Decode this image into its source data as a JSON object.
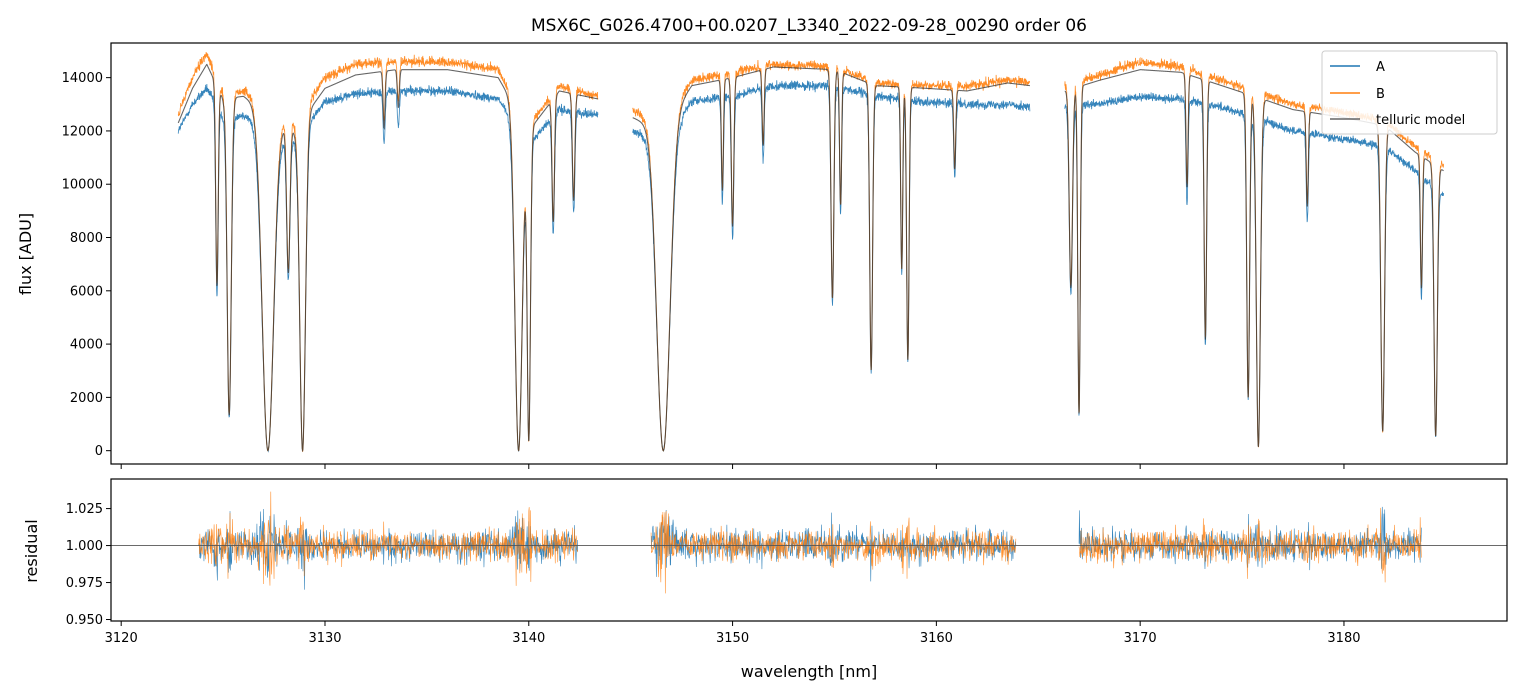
{
  "chart_data": {
    "type": "line",
    "title": "MSX6C_G026.4700+00.0207_L3340_2022-09-28_00290  order 06",
    "xlabel": "wavelength [nm]",
    "xlim": [
      3119.5,
      3188.0
    ],
    "x_ticks": [
      3120,
      3130,
      3140,
      3150,
      3160,
      3170,
      3180
    ],
    "colors": {
      "A": "#1f77b4",
      "B": "#ff7f0e",
      "model": "#333333",
      "unity": "#555555"
    },
    "top_panel": {
      "ylabel": "flux [ADU]",
      "ylim": [
        -500,
        15300
      ],
      "y_ticks": [
        0,
        2000,
        4000,
        6000,
        8000,
        10000,
        12000,
        14000
      ],
      "legend": {
        "position": "top-right",
        "entries": [
          "A",
          "B",
          "telluric model"
        ]
      },
      "segments": [
        [
          3122.8,
          3143.4
        ],
        [
          3145.1,
          3164.6
        ],
        [
          3166.3,
          3184.9
        ]
      ],
      "continuum": {
        "model": [
          [
            3122.8,
            12300
          ],
          [
            3123.5,
            13600
          ],
          [
            3124.2,
            14500
          ],
          [
            3125.0,
            13200
          ],
          [
            3126.0,
            13300
          ],
          [
            3127.5,
            12500
          ],
          [
            3128.5,
            12000
          ],
          [
            3130.0,
            13600
          ],
          [
            3131.5,
            14100
          ],
          [
            3133.5,
            14300
          ],
          [
            3136.0,
            14300
          ],
          [
            3138.5,
            14000
          ],
          [
            3140.0,
            12000
          ],
          [
            3141.5,
            13500
          ],
          [
            3143.4,
            13200
          ],
          [
            3145.1,
            12500
          ],
          [
            3146.5,
            12000
          ],
          [
            3148.0,
            13700
          ],
          [
            3150.0,
            14000
          ],
          [
            3152.0,
            14400
          ],
          [
            3155.0,
            14300
          ],
          [
            3157.0,
            13700
          ],
          [
            3159.5,
            13600
          ],
          [
            3161.5,
            13500
          ],
          [
            3163.5,
            13800
          ],
          [
            3164.6,
            13700
          ],
          [
            3166.3,
            13500
          ],
          [
            3168.0,
            13900
          ],
          [
            3170.0,
            14300
          ],
          [
            3172.0,
            14200
          ],
          [
            3174.0,
            13700
          ],
          [
            3176.0,
            13200
          ],
          [
            3177.5,
            12800
          ],
          [
            3180.0,
            12500
          ],
          [
            3182.0,
            12200
          ],
          [
            3183.5,
            11200
          ],
          [
            3184.9,
            10500
          ]
        ],
        "A": [
          [
            3122.8,
            12000
          ],
          [
            3123.5,
            13000
          ],
          [
            3124.2,
            13600
          ],
          [
            3125.0,
            12500
          ],
          [
            3126.0,
            12600
          ],
          [
            3127.5,
            12000
          ],
          [
            3128.5,
            11600
          ],
          [
            3130.0,
            13100
          ],
          [
            3131.5,
            13400
          ],
          [
            3133.5,
            13500
          ],
          [
            3136.0,
            13500
          ],
          [
            3138.5,
            13200
          ],
          [
            3140.0,
            11500
          ],
          [
            3141.5,
            12800
          ],
          [
            3143.4,
            12600
          ],
          [
            3145.1,
            12000
          ],
          [
            3146.5,
            11600
          ],
          [
            3148.0,
            13100
          ],
          [
            3150.0,
            13300
          ],
          [
            3152.0,
            13700
          ],
          [
            3155.0,
            13700
          ],
          [
            3157.0,
            13300
          ],
          [
            3159.5,
            13100
          ],
          [
            3161.5,
            13000
          ],
          [
            3163.5,
            13000
          ],
          [
            3164.6,
            12900
          ],
          [
            3166.3,
            12900
          ],
          [
            3168.0,
            13000
          ],
          [
            3170.0,
            13300
          ],
          [
            3172.0,
            13200
          ],
          [
            3174.0,
            12900
          ],
          [
            3176.0,
            12400
          ],
          [
            3177.5,
            12000
          ],
          [
            3180.0,
            11700
          ],
          [
            3182.0,
            11400
          ],
          [
            3183.5,
            10500
          ],
          [
            3184.9,
            9600
          ]
        ],
        "B": [
          [
            3122.8,
            12600
          ],
          [
            3123.5,
            14000
          ],
          [
            3124.2,
            14900
          ],
          [
            3125.0,
            13400
          ],
          [
            3126.0,
            13500
          ],
          [
            3127.5,
            12800
          ],
          [
            3128.5,
            12300
          ],
          [
            3130.0,
            14000
          ],
          [
            3131.5,
            14500
          ],
          [
            3133.5,
            14600
          ],
          [
            3136.0,
            14600
          ],
          [
            3138.5,
            14300
          ],
          [
            3140.0,
            12200
          ],
          [
            3141.5,
            13700
          ],
          [
            3143.4,
            13300
          ],
          [
            3145.1,
            12800
          ],
          [
            3146.5,
            12200
          ],
          [
            3148.0,
            13900
          ],
          [
            3150.0,
            14200
          ],
          [
            3152.0,
            14500
          ],
          [
            3155.0,
            14400
          ],
          [
            3157.0,
            13800
          ],
          [
            3159.5,
            13700
          ],
          [
            3161.5,
            13700
          ],
          [
            3163.5,
            13900
          ],
          [
            3164.6,
            13800
          ],
          [
            3166.3,
            13700
          ],
          [
            3168.0,
            14100
          ],
          [
            3170.0,
            14600
          ],
          [
            3172.0,
            14400
          ],
          [
            3174.0,
            13900
          ],
          [
            3176.0,
            13400
          ],
          [
            3177.5,
            13000
          ],
          [
            3180.0,
            12700
          ],
          [
            3182.0,
            12400
          ],
          [
            3183.5,
            11400
          ],
          [
            3184.9,
            10700
          ]
        ]
      },
      "absorption_lines": [
        {
          "center": 3124.7,
          "depth": 0.55,
          "width": 0.06
        },
        {
          "center": 3125.3,
          "depth": 0.9,
          "width": 0.1
        },
        {
          "center": 3127.2,
          "depth": 1.0,
          "width": 0.28
        },
        {
          "center": 3128.2,
          "depth": 0.45,
          "width": 0.08
        },
        {
          "center": 3128.9,
          "depth": 1.0,
          "width": 0.14
        },
        {
          "center": 3132.9,
          "depth": 0.15,
          "width": 0.05
        },
        {
          "center": 3133.6,
          "depth": 0.1,
          "width": 0.05
        },
        {
          "center": 3139.5,
          "depth": 1.0,
          "width": 0.18
        },
        {
          "center": 3140.0,
          "depth": 0.97,
          "width": 0.08
        },
        {
          "center": 3141.2,
          "depth": 0.35,
          "width": 0.06
        },
        {
          "center": 3142.2,
          "depth": 0.3,
          "width": 0.06
        },
        {
          "center": 3146.6,
          "depth": 1.0,
          "width": 0.32
        },
        {
          "center": 3149.5,
          "depth": 0.3,
          "width": 0.05
        },
        {
          "center": 3150.0,
          "depth": 0.4,
          "width": 0.06
        },
        {
          "center": 3151.5,
          "depth": 0.2,
          "width": 0.05
        },
        {
          "center": 3154.9,
          "depth": 0.6,
          "width": 0.07
        },
        {
          "center": 3155.3,
          "depth": 0.35,
          "width": 0.05
        },
        {
          "center": 3156.8,
          "depth": 0.78,
          "width": 0.07
        },
        {
          "center": 3158.3,
          "depth": 0.5,
          "width": 0.05
        },
        {
          "center": 3158.6,
          "depth": 0.75,
          "width": 0.06
        },
        {
          "center": 3160.9,
          "depth": 0.22,
          "width": 0.05
        },
        {
          "center": 3166.6,
          "depth": 0.55,
          "width": 0.08
        },
        {
          "center": 3167.0,
          "depth": 0.9,
          "width": 0.06
        },
        {
          "center": 3172.3,
          "depth": 0.3,
          "width": 0.05
        },
        {
          "center": 3173.2,
          "depth": 0.7,
          "width": 0.06
        },
        {
          "center": 3175.3,
          "depth": 0.85,
          "width": 0.07
        },
        {
          "center": 3175.8,
          "depth": 0.99,
          "width": 0.1
        },
        {
          "center": 3178.2,
          "depth": 0.28,
          "width": 0.05
        },
        {
          "center": 3181.9,
          "depth": 0.94,
          "width": 0.09
        },
        {
          "center": 3183.8,
          "depth": 0.45,
          "width": 0.05
        },
        {
          "center": 3184.5,
          "depth": 0.95,
          "width": 0.08
        }
      ]
    },
    "bottom_panel": {
      "ylabel": "residual",
      "ylim": [
        0.949,
        1.045
      ],
      "y_ticks": [
        0.95,
        0.975,
        1.0,
        1.025
      ],
      "y_tick_labels": [
        "0.950",
        "0.975",
        "1.000",
        "1.025"
      ],
      "unity_line": 1.0,
      "segments": [
        [
          3123.8,
          3142.4
        ],
        [
          3146.0,
          3163.9
        ],
        [
          3167.0,
          3183.8
        ]
      ],
      "noise_amplitude": 0.018
    }
  }
}
